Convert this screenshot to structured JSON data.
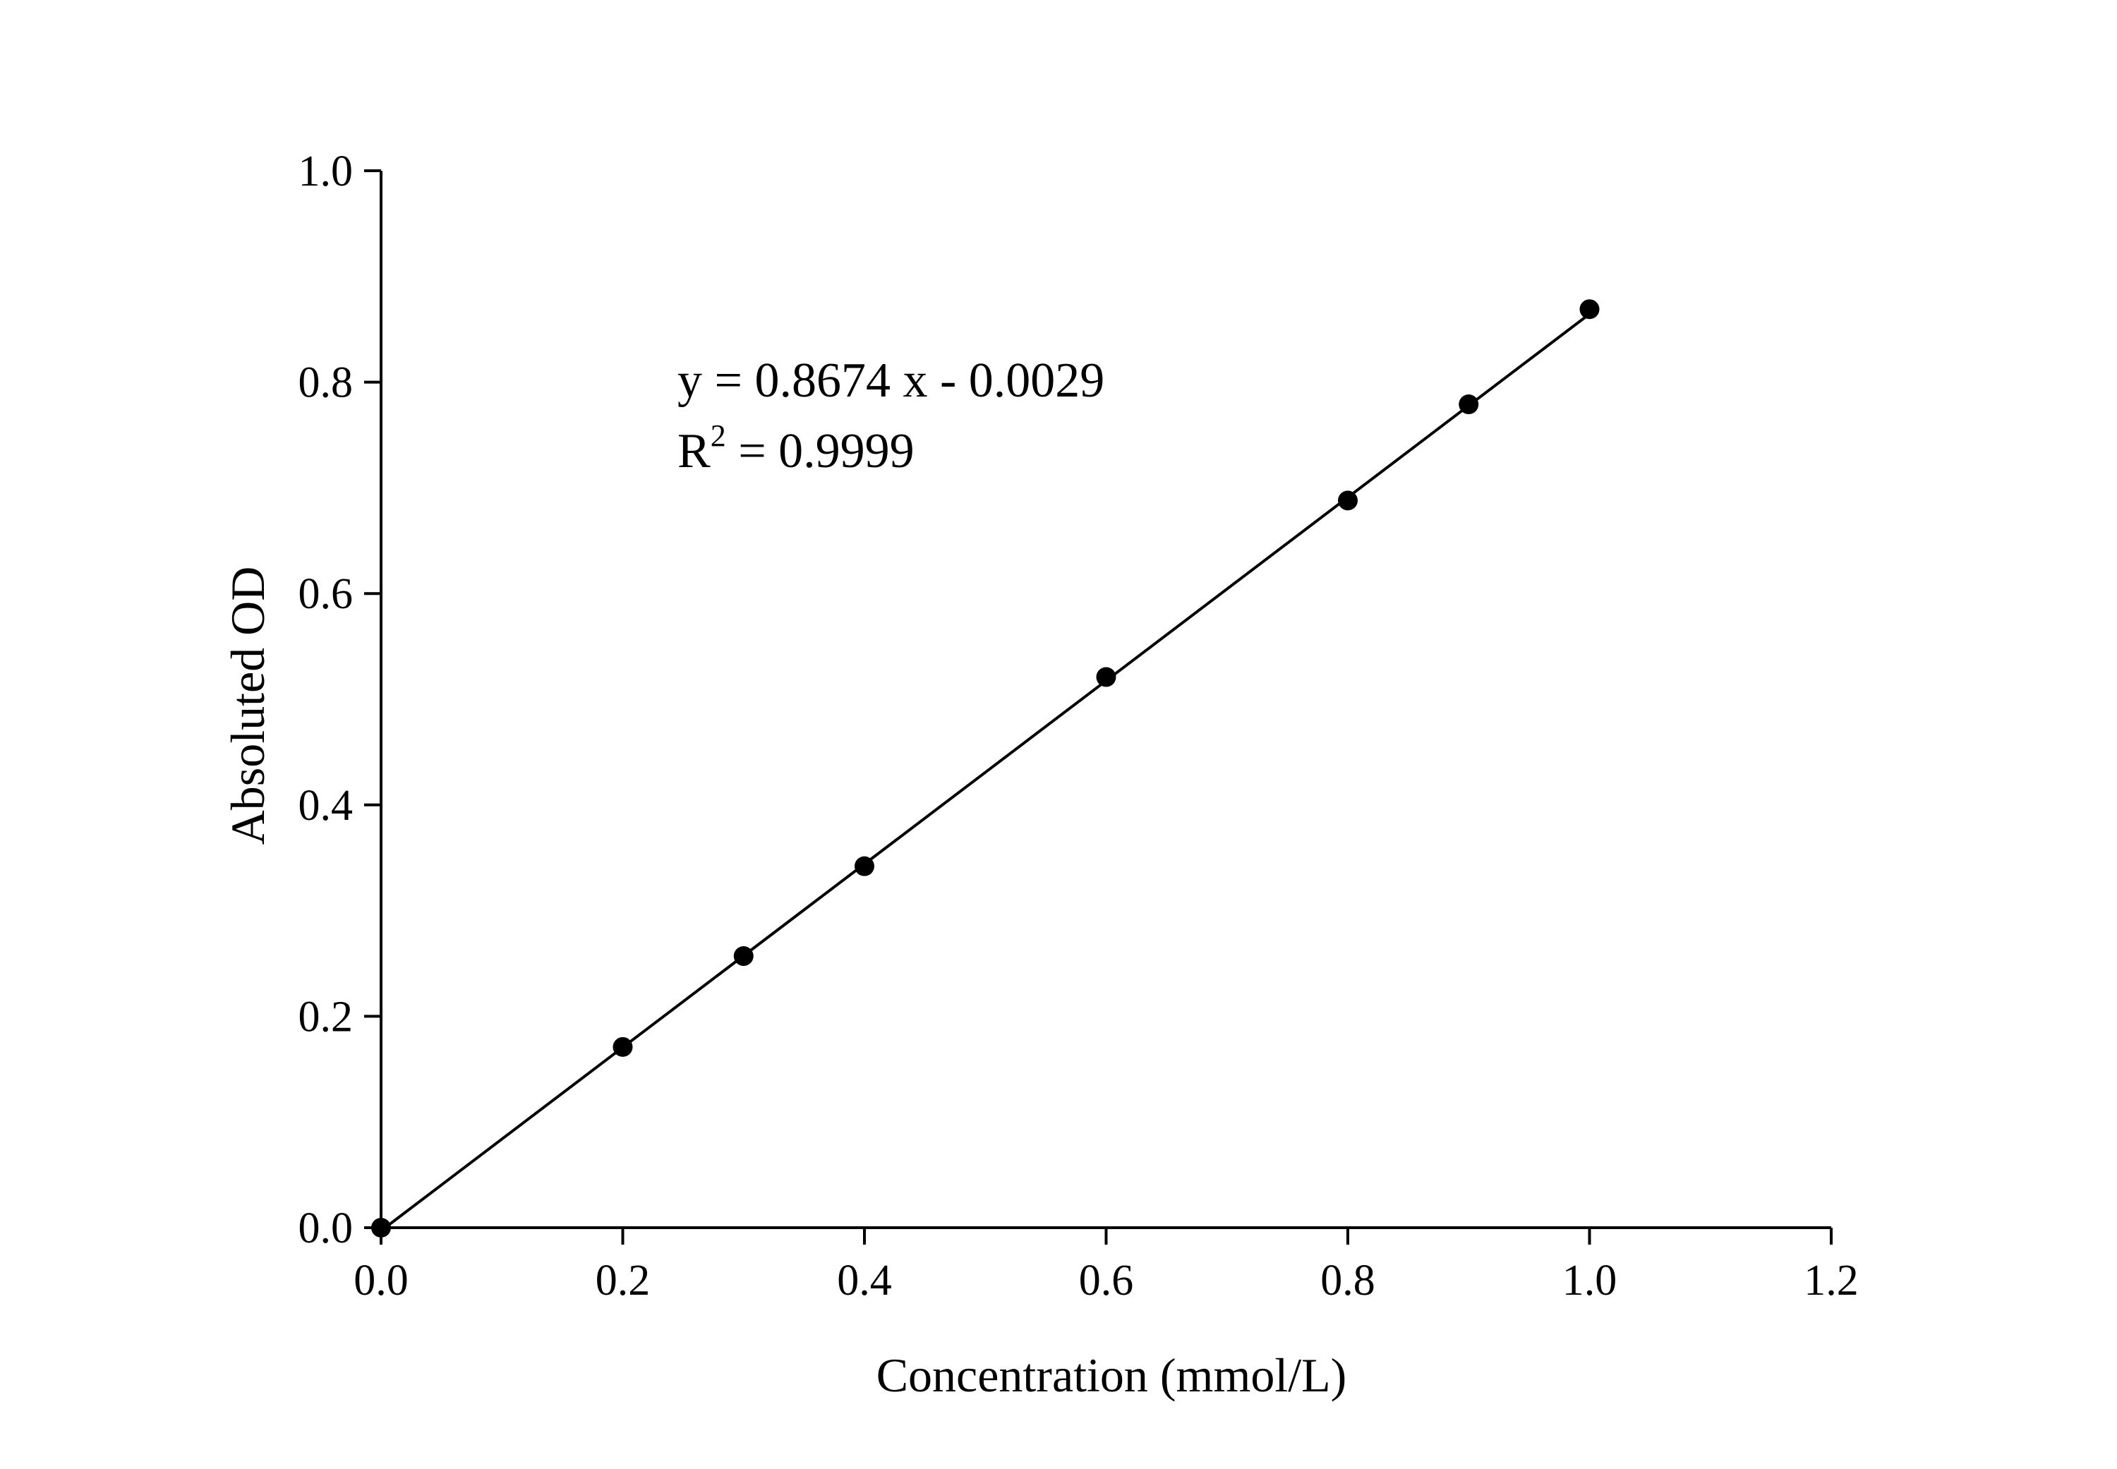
{
  "chart_data": {
    "type": "scatter",
    "title": "",
    "xlabel": "Concentration (mmol/L)",
    "ylabel": "Absoluted OD",
    "xlim": [
      0,
      1.2
    ],
    "ylim": [
      0,
      1.0
    ],
    "xticks": [
      "0.0",
      "0.2",
      "0.4",
      "0.6",
      "0.8",
      "1.0",
      "1.2"
    ],
    "yticks": [
      "0.0",
      "0.2",
      "0.4",
      "0.6",
      "0.8",
      "1.0"
    ],
    "grid": false,
    "legend": "none",
    "series": [
      {
        "x": [
          0.0,
          0.2,
          0.3,
          0.4,
          0.6,
          0.8,
          0.9,
          1.0
        ],
        "y": [
          0.0,
          0.171,
          0.257,
          0.342,
          0.521,
          0.688,
          0.779,
          0.869
        ],
        "color": "#000000"
      }
    ],
    "fit": {
      "slope": 0.8674,
      "intercept": -0.0029,
      "x_range": [
        0.0,
        1.0
      ]
    },
    "annotations": {
      "equation": "y = 0.8674 x - 0.0029",
      "r2_base": "R",
      "r2_sup": "2",
      "r2_value": " = 0.9999"
    }
  }
}
